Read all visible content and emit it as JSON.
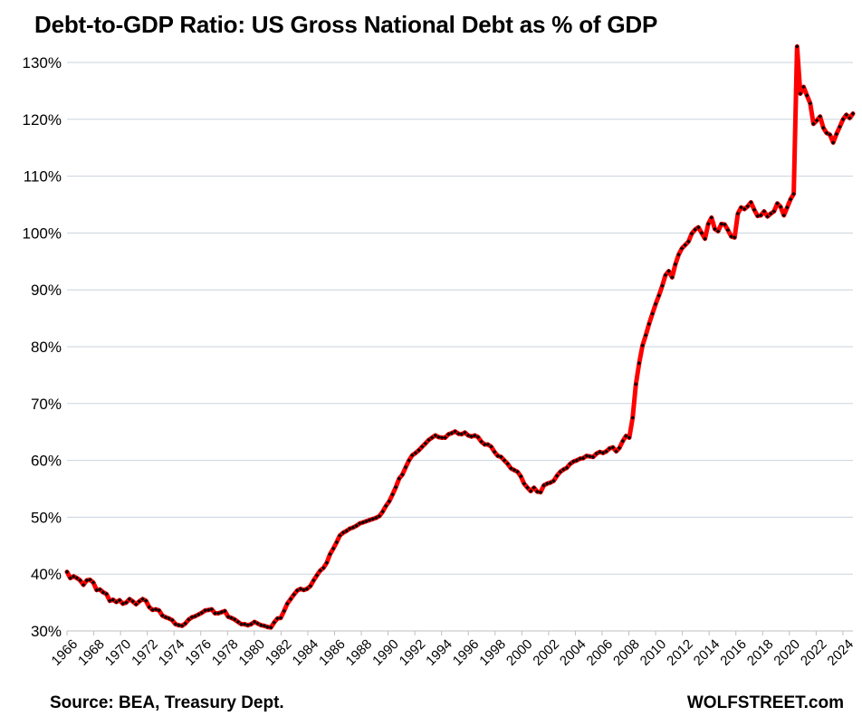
{
  "chart_data": {
    "type": "line",
    "title": "Debt-to-GDP Ratio: US Gross National Debt as % of GDP",
    "source": "Source: BEA, Treasury Dept.",
    "brand": "WOLFSTREET.com",
    "xlabel": "",
    "ylabel": "",
    "xlim": [
      1966.0,
      2024.75
    ],
    "ylim": [
      30,
      133
    ],
    "y_ticks": [
      {
        "value": 30,
        "label": "30%"
      },
      {
        "value": 40,
        "label": "40%"
      },
      {
        "value": 50,
        "label": "50%"
      },
      {
        "value": 60,
        "label": "60%"
      },
      {
        "value": 70,
        "label": "70%"
      },
      {
        "value": 80,
        "label": "80%"
      },
      {
        "value": 90,
        "label": "90%"
      },
      {
        "value": 100,
        "label": "100%"
      },
      {
        "value": 110,
        "label": "110%"
      },
      {
        "value": 120,
        "label": "120%"
      },
      {
        "value": 130,
        "label": "130%"
      }
    ],
    "x_ticks": [
      {
        "value": 1966,
        "label": "1966"
      },
      {
        "value": 1968,
        "label": "1968"
      },
      {
        "value": 1970,
        "label": "1970"
      },
      {
        "value": 1972,
        "label": "1972"
      },
      {
        "value": 1974,
        "label": "1974"
      },
      {
        "value": 1976,
        "label": "1976"
      },
      {
        "value": 1978,
        "label": "1978"
      },
      {
        "value": 1980,
        "label": "1980"
      },
      {
        "value": 1982,
        "label": "1982"
      },
      {
        "value": 1984,
        "label": "1984"
      },
      {
        "value": 1986,
        "label": "1986"
      },
      {
        "value": 1988,
        "label": "1988"
      },
      {
        "value": 1990,
        "label": "1990"
      },
      {
        "value": 1992,
        "label": "1992"
      },
      {
        "value": 1994,
        "label": "1994"
      },
      {
        "value": 1996,
        "label": "1996"
      },
      {
        "value": 1998,
        "label": "1998"
      },
      {
        "value": 2000,
        "label": "2000"
      },
      {
        "value": 2002,
        "label": "2002"
      },
      {
        "value": 2004,
        "label": "2004"
      },
      {
        "value": 2006,
        "label": "2006"
      },
      {
        "value": 2008,
        "label": "2008"
      },
      {
        "value": 2010,
        "label": "2010"
      },
      {
        "value": 2012,
        "label": "2012"
      },
      {
        "value": 2014,
        "label": "2014"
      },
      {
        "value": 2016,
        "label": "2016"
      },
      {
        "value": 2018,
        "label": "2018"
      },
      {
        "value": 2020,
        "label": "2020"
      },
      {
        "value": 2022,
        "label": "2022"
      },
      {
        "value": 2024,
        "label": "2024"
      }
    ],
    "grid": true,
    "legend": "none",
    "series": [
      {
        "name": "Debt-to-GDP Ratio",
        "color": "#ff0000",
        "marker_color": "#000000",
        "points": [
          [
            1966.0,
            40.4
          ],
          [
            1966.25,
            39.3
          ],
          [
            1966.5,
            39.6
          ],
          [
            1966.75,
            39.3
          ],
          [
            1967.0,
            38.9
          ],
          [
            1967.25,
            38.1
          ],
          [
            1967.5,
            38.9
          ],
          [
            1967.75,
            39.0
          ],
          [
            1968.0,
            38.5
          ],
          [
            1968.25,
            37.2
          ],
          [
            1968.5,
            37.3
          ],
          [
            1968.75,
            36.8
          ],
          [
            1969.0,
            36.5
          ],
          [
            1969.25,
            35.3
          ],
          [
            1969.5,
            35.5
          ],
          [
            1969.75,
            35.1
          ],
          [
            1970.0,
            35.4
          ],
          [
            1970.25,
            34.8
          ],
          [
            1970.5,
            35.0
          ],
          [
            1970.75,
            35.6
          ],
          [
            1971.0,
            35.2
          ],
          [
            1971.25,
            34.7
          ],
          [
            1971.5,
            35.2
          ],
          [
            1971.75,
            35.6
          ],
          [
            1972.0,
            35.3
          ],
          [
            1972.25,
            34.2
          ],
          [
            1972.5,
            33.7
          ],
          [
            1972.75,
            33.8
          ],
          [
            1973.0,
            33.6
          ],
          [
            1973.25,
            32.7
          ],
          [
            1973.5,
            32.4
          ],
          [
            1973.75,
            32.2
          ],
          [
            1974.0,
            31.9
          ],
          [
            1974.25,
            31.2
          ],
          [
            1974.5,
            31.0
          ],
          [
            1974.75,
            30.9
          ],
          [
            1975.0,
            31.3
          ],
          [
            1975.25,
            32.0
          ],
          [
            1975.5,
            32.4
          ],
          [
            1975.75,
            32.6
          ],
          [
            1976.0,
            32.9
          ],
          [
            1976.25,
            33.2
          ],
          [
            1976.5,
            33.6
          ],
          [
            1976.75,
            33.7
          ],
          [
            1977.0,
            33.8
          ],
          [
            1977.25,
            33.1
          ],
          [
            1977.5,
            33.1
          ],
          [
            1977.75,
            33.3
          ],
          [
            1978.0,
            33.5
          ],
          [
            1978.25,
            32.5
          ],
          [
            1978.5,
            32.3
          ],
          [
            1978.75,
            32.0
          ],
          [
            1979.0,
            31.6
          ],
          [
            1979.25,
            31.2
          ],
          [
            1979.5,
            31.2
          ],
          [
            1979.75,
            31.0
          ],
          [
            1980.0,
            31.2
          ],
          [
            1980.25,
            31.6
          ],
          [
            1980.5,
            31.3
          ],
          [
            1980.75,
            31.0
          ],
          [
            1981.0,
            30.9
          ],
          [
            1981.25,
            30.7
          ],
          [
            1981.5,
            30.6
          ],
          [
            1981.75,
            31.5
          ],
          [
            1982.0,
            32.2
          ],
          [
            1982.25,
            32.3
          ],
          [
            1982.5,
            33.5
          ],
          [
            1982.75,
            34.8
          ],
          [
            1983.0,
            35.6
          ],
          [
            1983.25,
            36.4
          ],
          [
            1983.5,
            37.1
          ],
          [
            1983.75,
            37.4
          ],
          [
            1984.0,
            37.2
          ],
          [
            1984.25,
            37.4
          ],
          [
            1984.5,
            37.9
          ],
          [
            1984.75,
            38.9
          ],
          [
            1985.0,
            39.8
          ],
          [
            1985.25,
            40.6
          ],
          [
            1985.5,
            41.1
          ],
          [
            1985.75,
            42.0
          ],
          [
            1986.0,
            43.5
          ],
          [
            1986.25,
            44.5
          ],
          [
            1986.5,
            45.6
          ],
          [
            1986.75,
            46.8
          ],
          [
            1987.0,
            47.3
          ],
          [
            1987.25,
            47.6
          ],
          [
            1987.5,
            48.0
          ],
          [
            1987.75,
            48.2
          ],
          [
            1988.0,
            48.5
          ],
          [
            1988.25,
            48.9
          ],
          [
            1988.5,
            49.1
          ],
          [
            1988.75,
            49.3
          ],
          [
            1989.0,
            49.5
          ],
          [
            1989.25,
            49.7
          ],
          [
            1989.5,
            49.9
          ],
          [
            1989.75,
            50.2
          ],
          [
            1990.0,
            51.0
          ],
          [
            1990.25,
            52.0
          ],
          [
            1990.5,
            52.8
          ],
          [
            1990.75,
            54.0
          ],
          [
            1991.0,
            55.3
          ],
          [
            1991.25,
            56.8
          ],
          [
            1991.5,
            57.5
          ],
          [
            1991.75,
            58.8
          ],
          [
            1992.0,
            60.0
          ],
          [
            1992.25,
            60.9
          ],
          [
            1992.5,
            61.3
          ],
          [
            1992.75,
            61.8
          ],
          [
            1993.0,
            62.4
          ],
          [
            1993.25,
            63.0
          ],
          [
            1993.5,
            63.6
          ],
          [
            1993.75,
            64.0
          ],
          [
            1994.0,
            64.4
          ],
          [
            1994.25,
            64.1
          ],
          [
            1994.5,
            64.0
          ],
          [
            1994.75,
            64.0
          ],
          [
            1995.0,
            64.6
          ],
          [
            1995.25,
            64.8
          ],
          [
            1995.5,
            65.1
          ],
          [
            1995.75,
            64.7
          ],
          [
            1996.0,
            64.6
          ],
          [
            1996.25,
            64.9
          ],
          [
            1996.5,
            64.4
          ],
          [
            1996.75,
            64.2
          ],
          [
            1997.0,
            64.4
          ],
          [
            1997.25,
            64.1
          ],
          [
            1997.5,
            63.3
          ],
          [
            1997.75,
            62.8
          ],
          [
            1998.0,
            62.8
          ],
          [
            1998.25,
            62.4
          ],
          [
            1998.5,
            61.5
          ],
          [
            1998.75,
            60.8
          ],
          [
            1999.0,
            60.6
          ],
          [
            1999.25,
            60.0
          ],
          [
            1999.5,
            59.4
          ],
          [
            1999.75,
            58.6
          ],
          [
            2000.0,
            58.3
          ],
          [
            2000.25,
            58.0
          ],
          [
            2000.5,
            57.2
          ],
          [
            2000.75,
            55.9
          ],
          [
            2001.0,
            55.2
          ],
          [
            2001.25,
            54.6
          ],
          [
            2001.5,
            55.2
          ],
          [
            2001.75,
            54.5
          ],
          [
            2002.0,
            54.4
          ],
          [
            2002.25,
            55.6
          ],
          [
            2002.5,
            55.9
          ],
          [
            2002.75,
            56.1
          ],
          [
            2003.0,
            56.4
          ],
          [
            2003.25,
            57.3
          ],
          [
            2003.5,
            58.0
          ],
          [
            2003.75,
            58.4
          ],
          [
            2004.0,
            58.7
          ],
          [
            2004.25,
            59.4
          ],
          [
            2004.5,
            59.8
          ],
          [
            2004.75,
            60.0
          ],
          [
            2005.0,
            60.3
          ],
          [
            2005.25,
            60.4
          ],
          [
            2005.5,
            60.8
          ],
          [
            2005.75,
            60.7
          ],
          [
            2006.0,
            60.6
          ],
          [
            2006.25,
            61.2
          ],
          [
            2006.5,
            61.5
          ],
          [
            2006.75,
            61.3
          ],
          [
            2007.0,
            61.6
          ],
          [
            2007.25,
            62.1
          ],
          [
            2007.5,
            62.3
          ],
          [
            2007.75,
            61.6
          ],
          [
            2008.0,
            62.2
          ],
          [
            2008.25,
            63.4
          ],
          [
            2008.5,
            64.3
          ],
          [
            2008.75,
            64.0
          ],
          [
            2009.0,
            67.5
          ],
          [
            2009.25,
            73.4
          ],
          [
            2009.5,
            77.1
          ],
          [
            2009.75,
            80.2
          ],
          [
            2010.0,
            82.0
          ],
          [
            2010.25,
            84.0
          ],
          [
            2010.5,
            85.8
          ],
          [
            2010.75,
            87.5
          ],
          [
            2011.0,
            89.0
          ],
          [
            2011.25,
            90.7
          ],
          [
            2011.5,
            92.6
          ],
          [
            2011.75,
            93.3
          ],
          [
            2012.0,
            92.2
          ],
          [
            2012.25,
            94.5
          ],
          [
            2012.5,
            96.2
          ],
          [
            2012.75,
            97.3
          ],
          [
            2013.0,
            97.9
          ],
          [
            2013.25,
            98.5
          ],
          [
            2013.5,
            99.9
          ],
          [
            2013.75,
            100.6
          ],
          [
            2014.0,
            101.0
          ],
          [
            2014.25,
            100.0
          ],
          [
            2014.5,
            99.0
          ],
          [
            2014.75,
            101.6
          ],
          [
            2015.0,
            102.7
          ],
          [
            2015.25,
            100.7
          ],
          [
            2015.5,
            100.3
          ],
          [
            2015.75,
            101.6
          ],
          [
            2016.0,
            101.5
          ],
          [
            2016.25,
            100.5
          ],
          [
            2016.5,
            99.4
          ],
          [
            2016.75,
            99.2
          ],
          [
            2017.0,
            103.4
          ],
          [
            2017.25,
            104.5
          ],
          [
            2017.5,
            104.2
          ],
          [
            2017.75,
            104.7
          ],
          [
            2018.0,
            105.4
          ],
          [
            2018.25,
            104.1
          ],
          [
            2018.5,
            103.0
          ],
          [
            2018.75,
            103.1
          ],
          [
            2019.0,
            103.8
          ],
          [
            2019.25,
            102.9
          ],
          [
            2019.5,
            103.4
          ],
          [
            2019.75,
            103.8
          ],
          [
            2020.0,
            105.2
          ],
          [
            2020.25,
            104.6
          ],
          [
            2020.5,
            103.1
          ],
          [
            2020.75,
            104.5
          ],
          [
            2021.0,
            105.9
          ],
          [
            2021.25,
            106.9
          ],
          [
            2021.5,
            132.8
          ],
          [
            2021.75,
            124.5
          ],
          [
            2022.0,
            125.7
          ],
          [
            2022.25,
            124.2
          ],
          [
            2022.5,
            122.8
          ],
          [
            2022.75,
            119.2
          ],
          [
            2023.0,
            119.8
          ],
          [
            2023.25,
            120.5
          ],
          [
            2023.5,
            118.5
          ],
          [
            2023.75,
            117.6
          ],
          [
            2024.0,
            117.3
          ],
          [
            2024.25,
            115.9
          ],
          [
            2024.5,
            117.4
          ],
          [
            2024.75,
            118.7
          ],
          [
            2025.0,
            120.0
          ],
          [
            2025.25,
            120.8
          ],
          [
            2025.5,
            120.2
          ],
          [
            2025.75,
            121.0
          ]
        ]
      }
    ]
  }
}
